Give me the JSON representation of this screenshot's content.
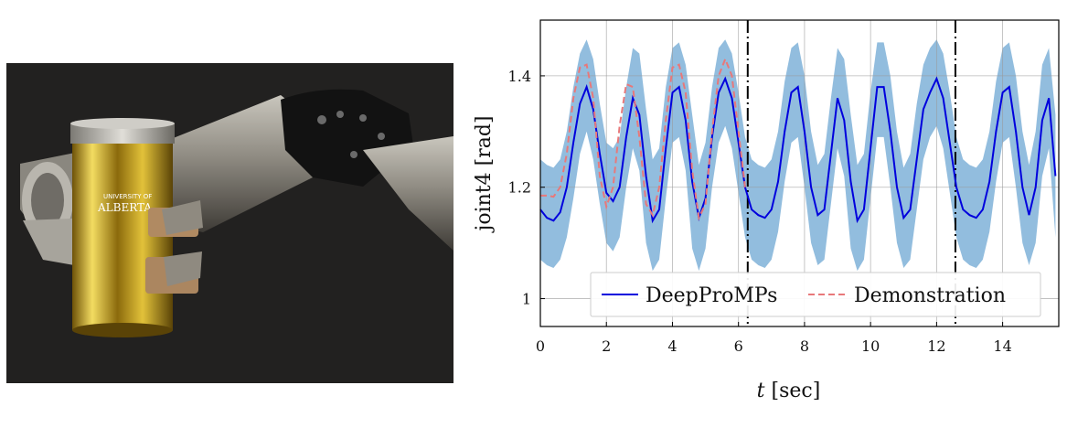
{
  "photo": {
    "cup_logo_line1": "UNIVERSITY OF",
    "cup_logo_line2": "ALBERTA"
  },
  "chart_data": {
    "type": "line",
    "xlabel_var": "t",
    "xlabel_unit": "[sec]",
    "ylabel": "joint4 [rad]",
    "xlim": [
      0,
      15.7
    ],
    "ylim": [
      0.95,
      1.5
    ],
    "xticks": [
      0,
      2,
      4,
      6,
      8,
      10,
      12,
      14
    ],
    "yticks": [
      1.0,
      1.2,
      1.4
    ],
    "ytick_labels": [
      "1",
      "1.2",
      "1.4"
    ],
    "grid": true,
    "legend_position": "bottom-right",
    "period_markers": [
      6.28,
      12.57
    ],
    "colors": {
      "mean": "#0000dd",
      "band": "#7fb2d8",
      "demo": "#e8787a",
      "marker": "#000000"
    },
    "series": [
      {
        "name": "DeepProMPs",
        "style": "solid",
        "x": [
          0,
          0.2,
          0.4,
          0.6,
          0.8,
          1,
          1.2,
          1.4,
          1.6,
          1.8,
          2,
          2.2,
          2.4,
          2.6,
          2.8,
          3,
          3.2,
          3.4,
          3.6,
          3.8,
          4,
          4.2,
          4.4,
          4.6,
          4.8,
          5,
          5.2,
          5.4,
          5.6,
          5.8,
          6,
          6.2,
          6.4,
          6.6,
          6.8,
          7,
          7.2,
          7.4,
          7.6,
          7.8,
          8,
          8.2,
          8.4,
          8.6,
          8.8,
          9,
          9.2,
          9.4,
          9.6,
          9.8,
          10,
          10.2,
          10.4,
          10.6,
          10.8,
          11,
          11.2,
          11.4,
          11.6,
          11.8,
          12,
          12.2,
          12.4,
          12.6,
          12.8,
          13,
          13.2,
          13.4,
          13.6,
          13.8,
          14,
          14.2,
          14.4,
          14.6,
          14.8,
          15,
          15.2,
          15.4,
          15.6
        ],
        "y": [
          1.16,
          1.145,
          1.14,
          1.155,
          1.2,
          1.28,
          1.35,
          1.38,
          1.34,
          1.26,
          1.19,
          1.175,
          1.2,
          1.29,
          1.36,
          1.33,
          1.22,
          1.14,
          1.16,
          1.27,
          1.37,
          1.38,
          1.32,
          1.21,
          1.145,
          1.18,
          1.29,
          1.37,
          1.395,
          1.36,
          1.28,
          1.2,
          1.16,
          1.15,
          1.145,
          1.16,
          1.21,
          1.3,
          1.37,
          1.38,
          1.3,
          1.2,
          1.15,
          1.16,
          1.26,
          1.36,
          1.32,
          1.21,
          1.14,
          1.16,
          1.27,
          1.38,
          1.38,
          1.3,
          1.2,
          1.145,
          1.16,
          1.25,
          1.34,
          1.37,
          1.395,
          1.36,
          1.28,
          1.2,
          1.16,
          1.15,
          1.145,
          1.16,
          1.21,
          1.3,
          1.37,
          1.38,
          1.3,
          1.2,
          1.15,
          1.2,
          1.32,
          1.36,
          1.22
        ]
      },
      {
        "name": "Demonstration",
        "style": "dashed",
        "x": [
          0,
          0.2,
          0.4,
          0.6,
          0.8,
          1,
          1.2,
          1.4,
          1.6,
          1.8,
          2,
          2.2,
          2.4,
          2.6,
          2.8,
          3,
          3.2,
          3.4,
          3.6,
          3.8,
          4,
          4.2,
          4.4,
          4.6,
          4.8,
          5,
          5.2,
          5.4,
          5.6,
          5.8,
          6,
          6.2
        ],
        "y": [
          1.185,
          1.185,
          1.183,
          1.2,
          1.26,
          1.36,
          1.415,
          1.42,
          1.36,
          1.22,
          1.165,
          1.2,
          1.31,
          1.385,
          1.38,
          1.29,
          1.17,
          1.15,
          1.2,
          1.32,
          1.415,
          1.42,
          1.37,
          1.23,
          1.145,
          1.17,
          1.3,
          1.4,
          1.43,
          1.4,
          1.3,
          1.2
        ]
      }
    ],
    "band": {
      "upper": [
        1.25,
        1.24,
        1.235,
        1.25,
        1.3,
        1.38,
        1.44,
        1.465,
        1.43,
        1.35,
        1.28,
        1.27,
        1.29,
        1.38,
        1.45,
        1.44,
        1.34,
        1.25,
        1.27,
        1.38,
        1.45,
        1.46,
        1.42,
        1.33,
        1.24,
        1.28,
        1.38,
        1.45,
        1.465,
        1.44,
        1.37,
        1.29,
        1.25,
        1.24,
        1.235,
        1.25,
        1.3,
        1.39,
        1.45,
        1.46,
        1.4,
        1.3,
        1.24,
        1.26,
        1.36,
        1.45,
        1.43,
        1.33,
        1.24,
        1.26,
        1.37,
        1.46,
        1.46,
        1.4,
        1.3,
        1.235,
        1.26,
        1.35,
        1.42,
        1.45,
        1.465,
        1.44,
        1.37,
        1.29,
        1.25,
        1.24,
        1.235,
        1.25,
        1.3,
        1.39,
        1.45,
        1.46,
        1.4,
        1.3,
        1.24,
        1.3,
        1.42,
        1.45,
        1.33
      ],
      "lower": [
        1.07,
        1.06,
        1.055,
        1.07,
        1.11,
        1.18,
        1.26,
        1.3,
        1.25,
        1.17,
        1.1,
        1.085,
        1.11,
        1.2,
        1.27,
        1.23,
        1.1,
        1.05,
        1.07,
        1.18,
        1.28,
        1.29,
        1.23,
        1.09,
        1.05,
        1.09,
        1.2,
        1.28,
        1.31,
        1.27,
        1.19,
        1.11,
        1.07,
        1.06,
        1.055,
        1.07,
        1.12,
        1.21,
        1.28,
        1.29,
        1.2,
        1.1,
        1.06,
        1.07,
        1.17,
        1.27,
        1.22,
        1.09,
        1.05,
        1.07,
        1.18,
        1.29,
        1.29,
        1.2,
        1.1,
        1.055,
        1.07,
        1.16,
        1.25,
        1.29,
        1.31,
        1.27,
        1.19,
        1.11,
        1.07,
        1.06,
        1.055,
        1.07,
        1.12,
        1.21,
        1.28,
        1.29,
        1.2,
        1.1,
        1.06,
        1.1,
        1.22,
        1.27,
        1.11
      ]
    }
  }
}
